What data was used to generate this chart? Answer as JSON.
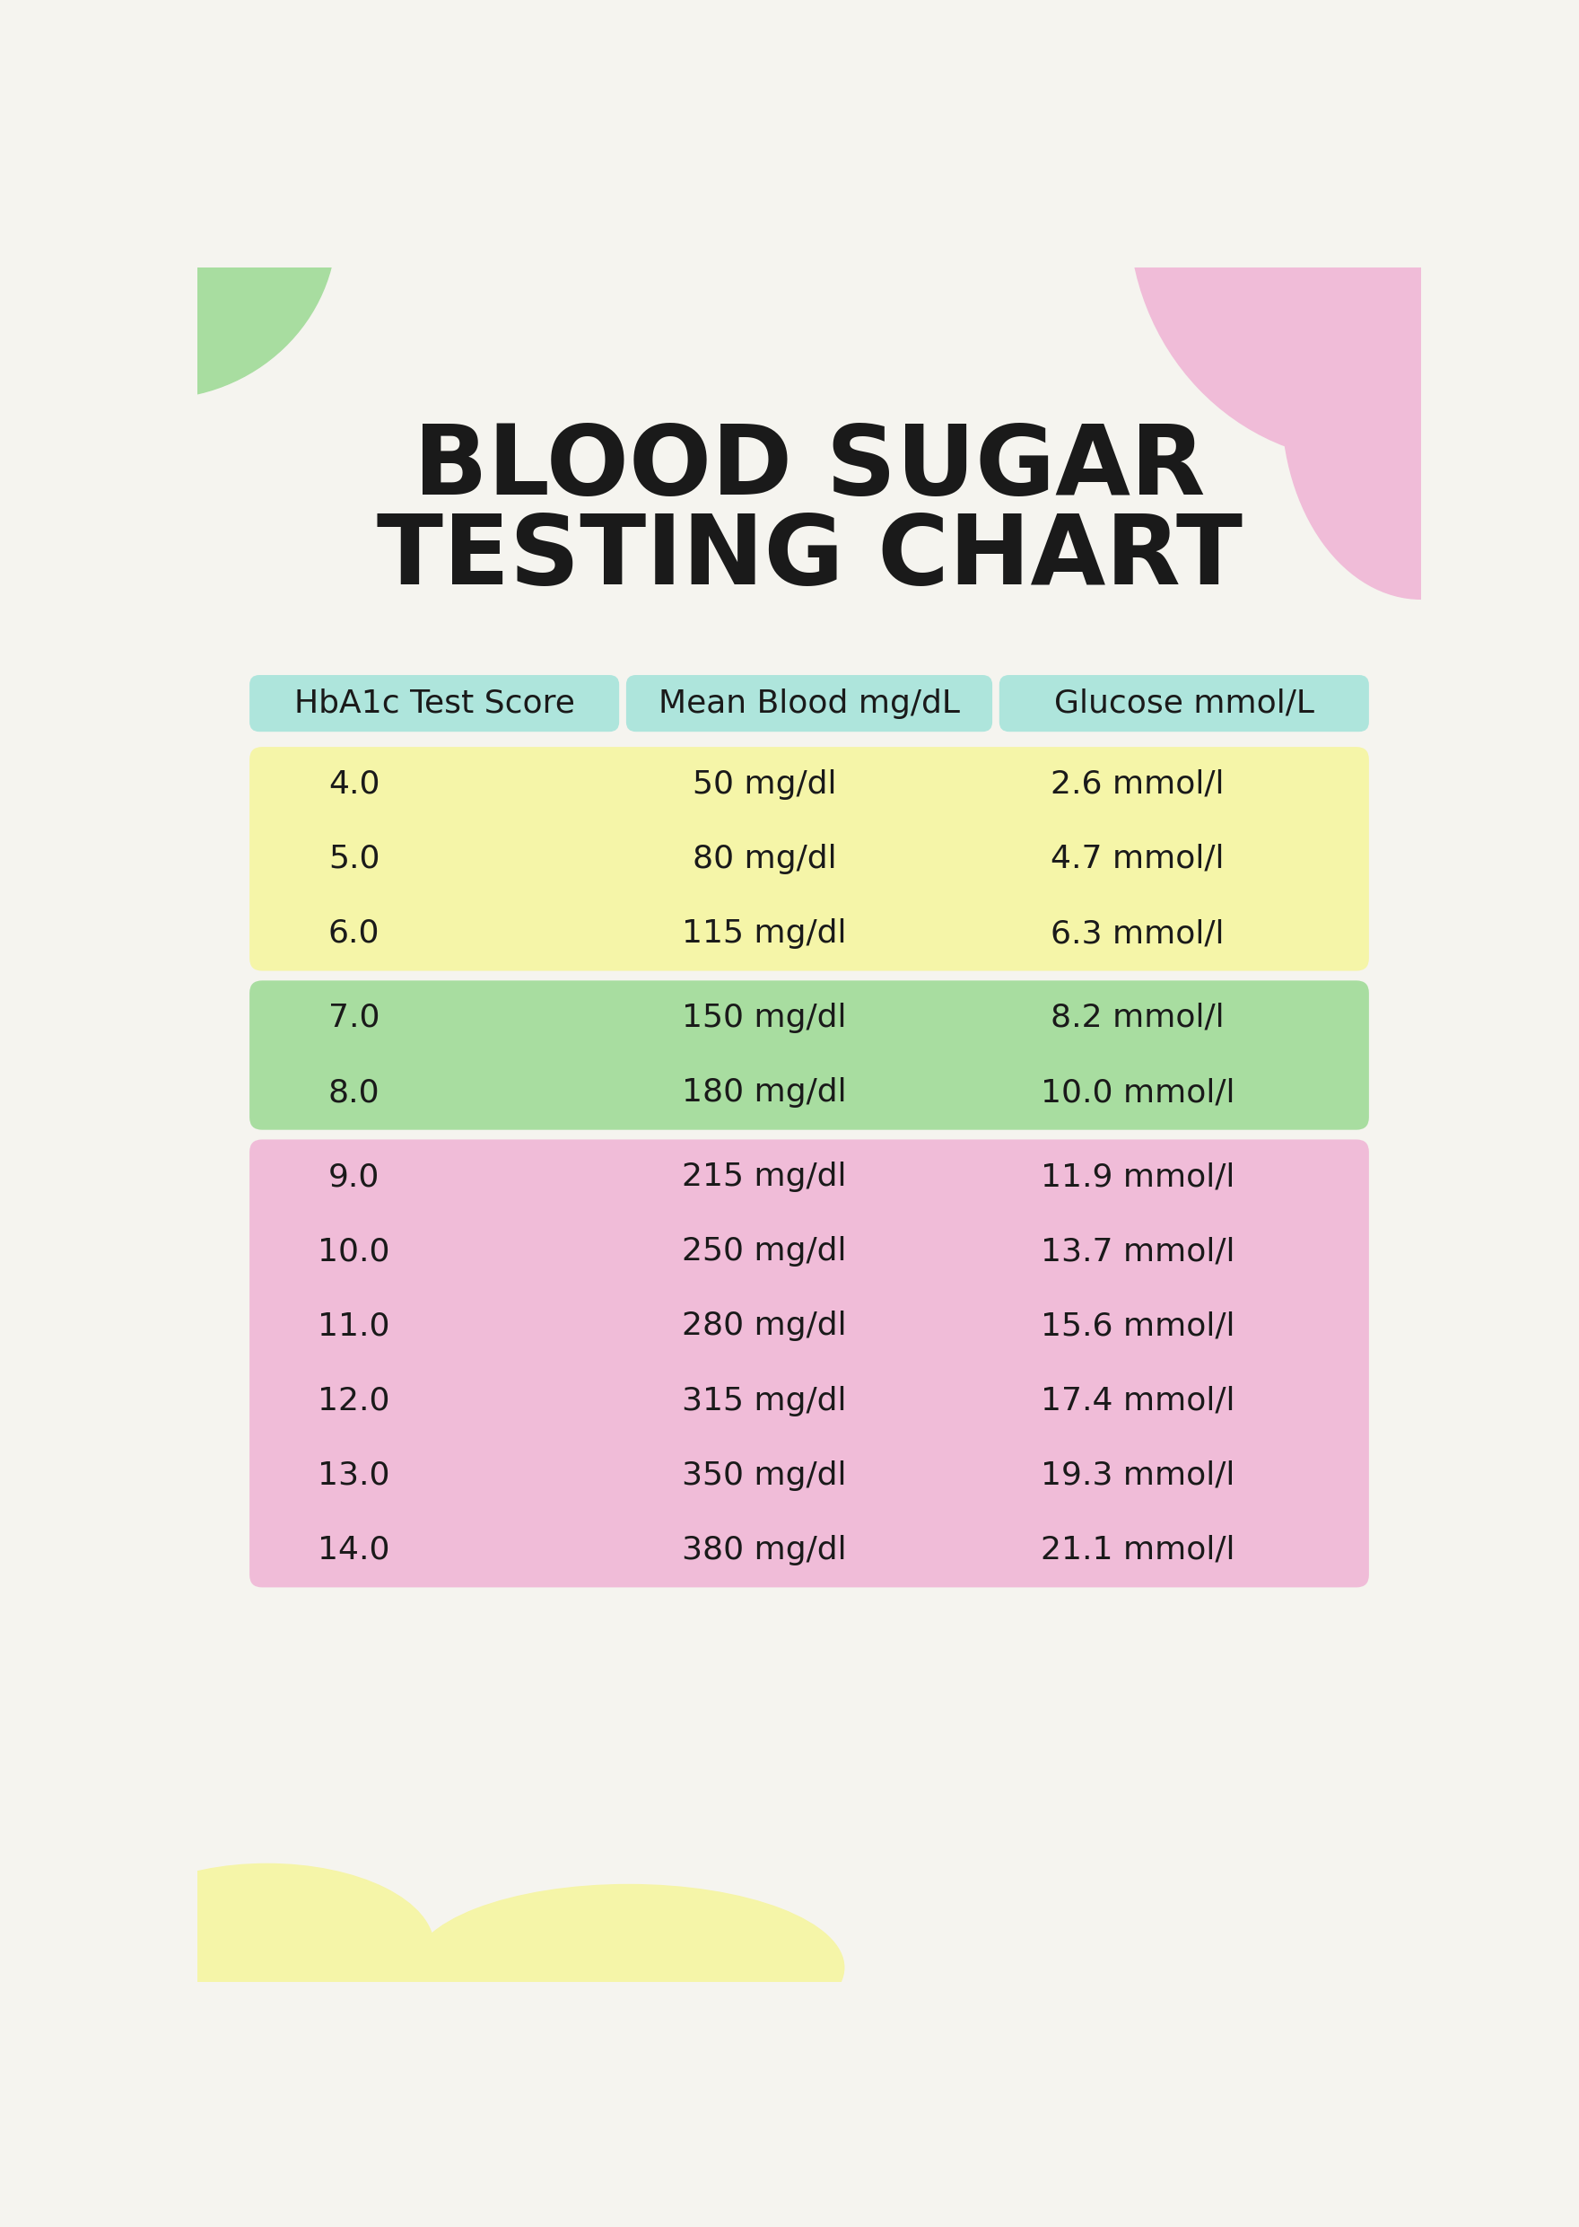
{
  "title_line1": "BLOOD SUGAR",
  "title_line2": "TESTING CHART",
  "title_fontsize": 78,
  "background_color": "#f5f4ef",
  "header_labels": [
    "HbA1c Test Score",
    "Mean Blood mg/dL",
    "Glucose mmol/L"
  ],
  "header_bg": "#aee5dc",
  "rows": [
    {
      "hba1c": "4.0",
      "mgdl": "50 mg/dl",
      "mmol": "2.6 mmol/l",
      "group": "yellow"
    },
    {
      "hba1c": "5.0",
      "mgdl": "80 mg/dl",
      "mmol": "4.7 mmol/l",
      "group": "yellow"
    },
    {
      "hba1c": "6.0",
      "mgdl": "115 mg/dl",
      "mmol": "6.3 mmol/l",
      "group": "yellow"
    },
    {
      "hba1c": "7.0",
      "mgdl": "150 mg/dl",
      "mmol": "8.2 mmol/l",
      "group": "green"
    },
    {
      "hba1c": "8.0",
      "mgdl": "180 mg/dl",
      "mmol": "10.0 mmol/l",
      "group": "green"
    },
    {
      "hba1c": "9.0",
      "mgdl": "215 mg/dl",
      "mmol": "11.9 mmol/l",
      "group": "pink"
    },
    {
      "hba1c": "10.0",
      "mgdl": "250 mg/dl",
      "mmol": "13.7 mmol/l",
      "group": "pink"
    },
    {
      "hba1c": "11.0",
      "mgdl": "280 mg/dl",
      "mmol": "15.6 mmol/l",
      "group": "pink"
    },
    {
      "hba1c": "12.0",
      "mgdl": "315 mg/dl",
      "mmol": "17.4 mmol/l",
      "group": "pink"
    },
    {
      "hba1c": "13.0",
      "mgdl": "350 mg/dl",
      "mmol": "19.3 mmol/l",
      "group": "pink"
    },
    {
      "hba1c": "14.0",
      "mgdl": "380 mg/dl",
      "mmol": "21.1 mmol/l",
      "group": "pink"
    }
  ],
  "group_colors": {
    "yellow": "#f5f5a8",
    "green": "#a8dda0",
    "pink": "#f0bcd8"
  },
  "text_color": "#1a1a1a",
  "data_fontsize": 26,
  "header_fontsize": 26,
  "decoration_green": "#a8dda0",
  "decoration_pink": "#f0bcd8",
  "decoration_yellow": "#f5f5a8"
}
